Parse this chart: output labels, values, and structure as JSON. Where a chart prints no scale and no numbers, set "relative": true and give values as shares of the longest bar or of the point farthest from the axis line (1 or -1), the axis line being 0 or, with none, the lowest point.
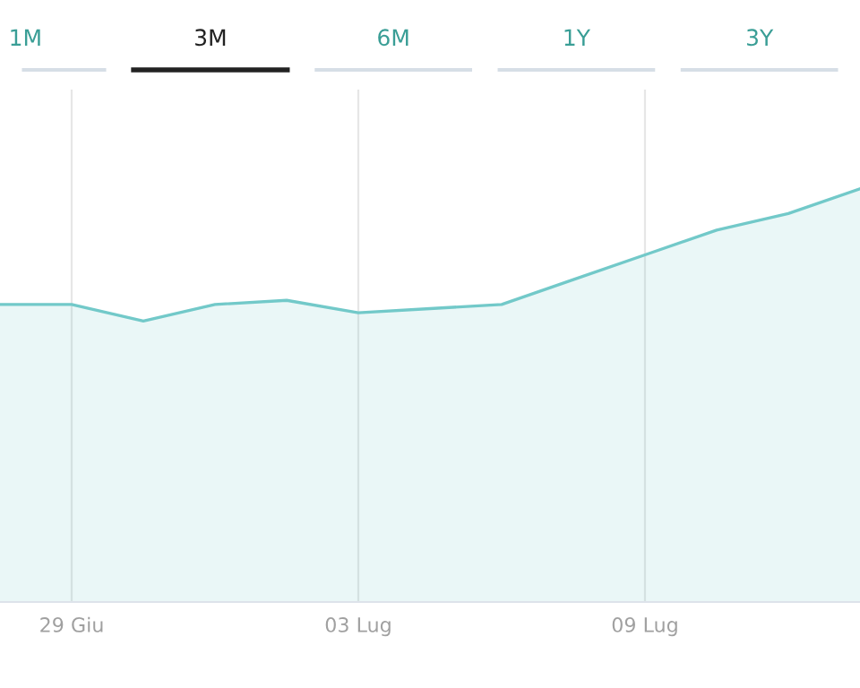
{
  "chart_data": {
    "type": "area",
    "relative": true,
    "categories": [
      null,
      "29 Giu",
      null,
      null,
      null,
      "03 Lug",
      null,
      null,
      null,
      "09 Lug",
      null,
      null,
      null
    ],
    "series": [
      {
        "color": "#72c9c9",
        "values": [
          0.72,
          0.72,
          0.68,
          0.72,
          0.73,
          0.7,
          0.71,
          0.72,
          0.78,
          0.84,
          0.9,
          0.94,
          1
        ]
      }
    ],
    "grid": "x",
    "annotations": [
      "1M",
      "3M",
      "6M",
      "1Y",
      "3Y"
    ]
  }
}
